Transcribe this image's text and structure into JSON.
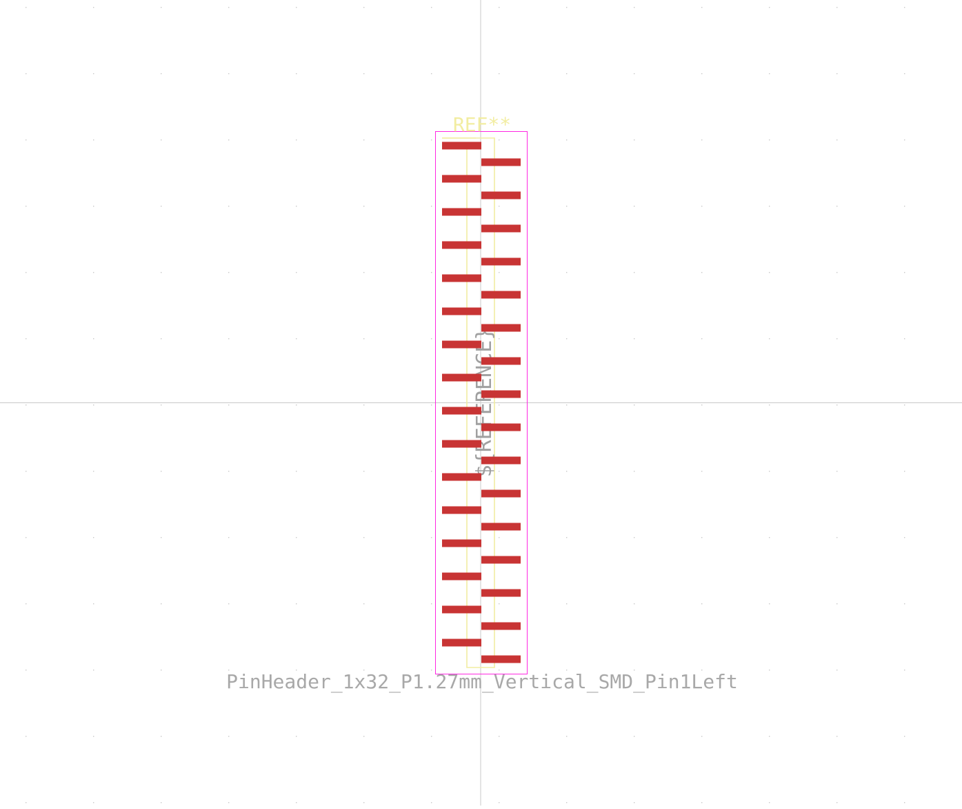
{
  "footprint": {
    "reference": "REF**",
    "value": "PinHeader_1x32_P1.27mm_Vertical_SMD_Pin1Left",
    "fab_reference": "${REFERENCE}",
    "pin_count": 32,
    "pitch_mm": 1.27,
    "orientation": "Vertical",
    "pin1_side": "Left"
  },
  "colors": {
    "background": "#ffffff",
    "grid_dot": "#c8c8c8",
    "axis": "#c8c8c8",
    "pad": "#c83434",
    "silkscreen": "#f2eda1",
    "courtyard": "#ff26e2",
    "fab_text": "#a0a0a0",
    "value_text": "#a8a8a8"
  }
}
